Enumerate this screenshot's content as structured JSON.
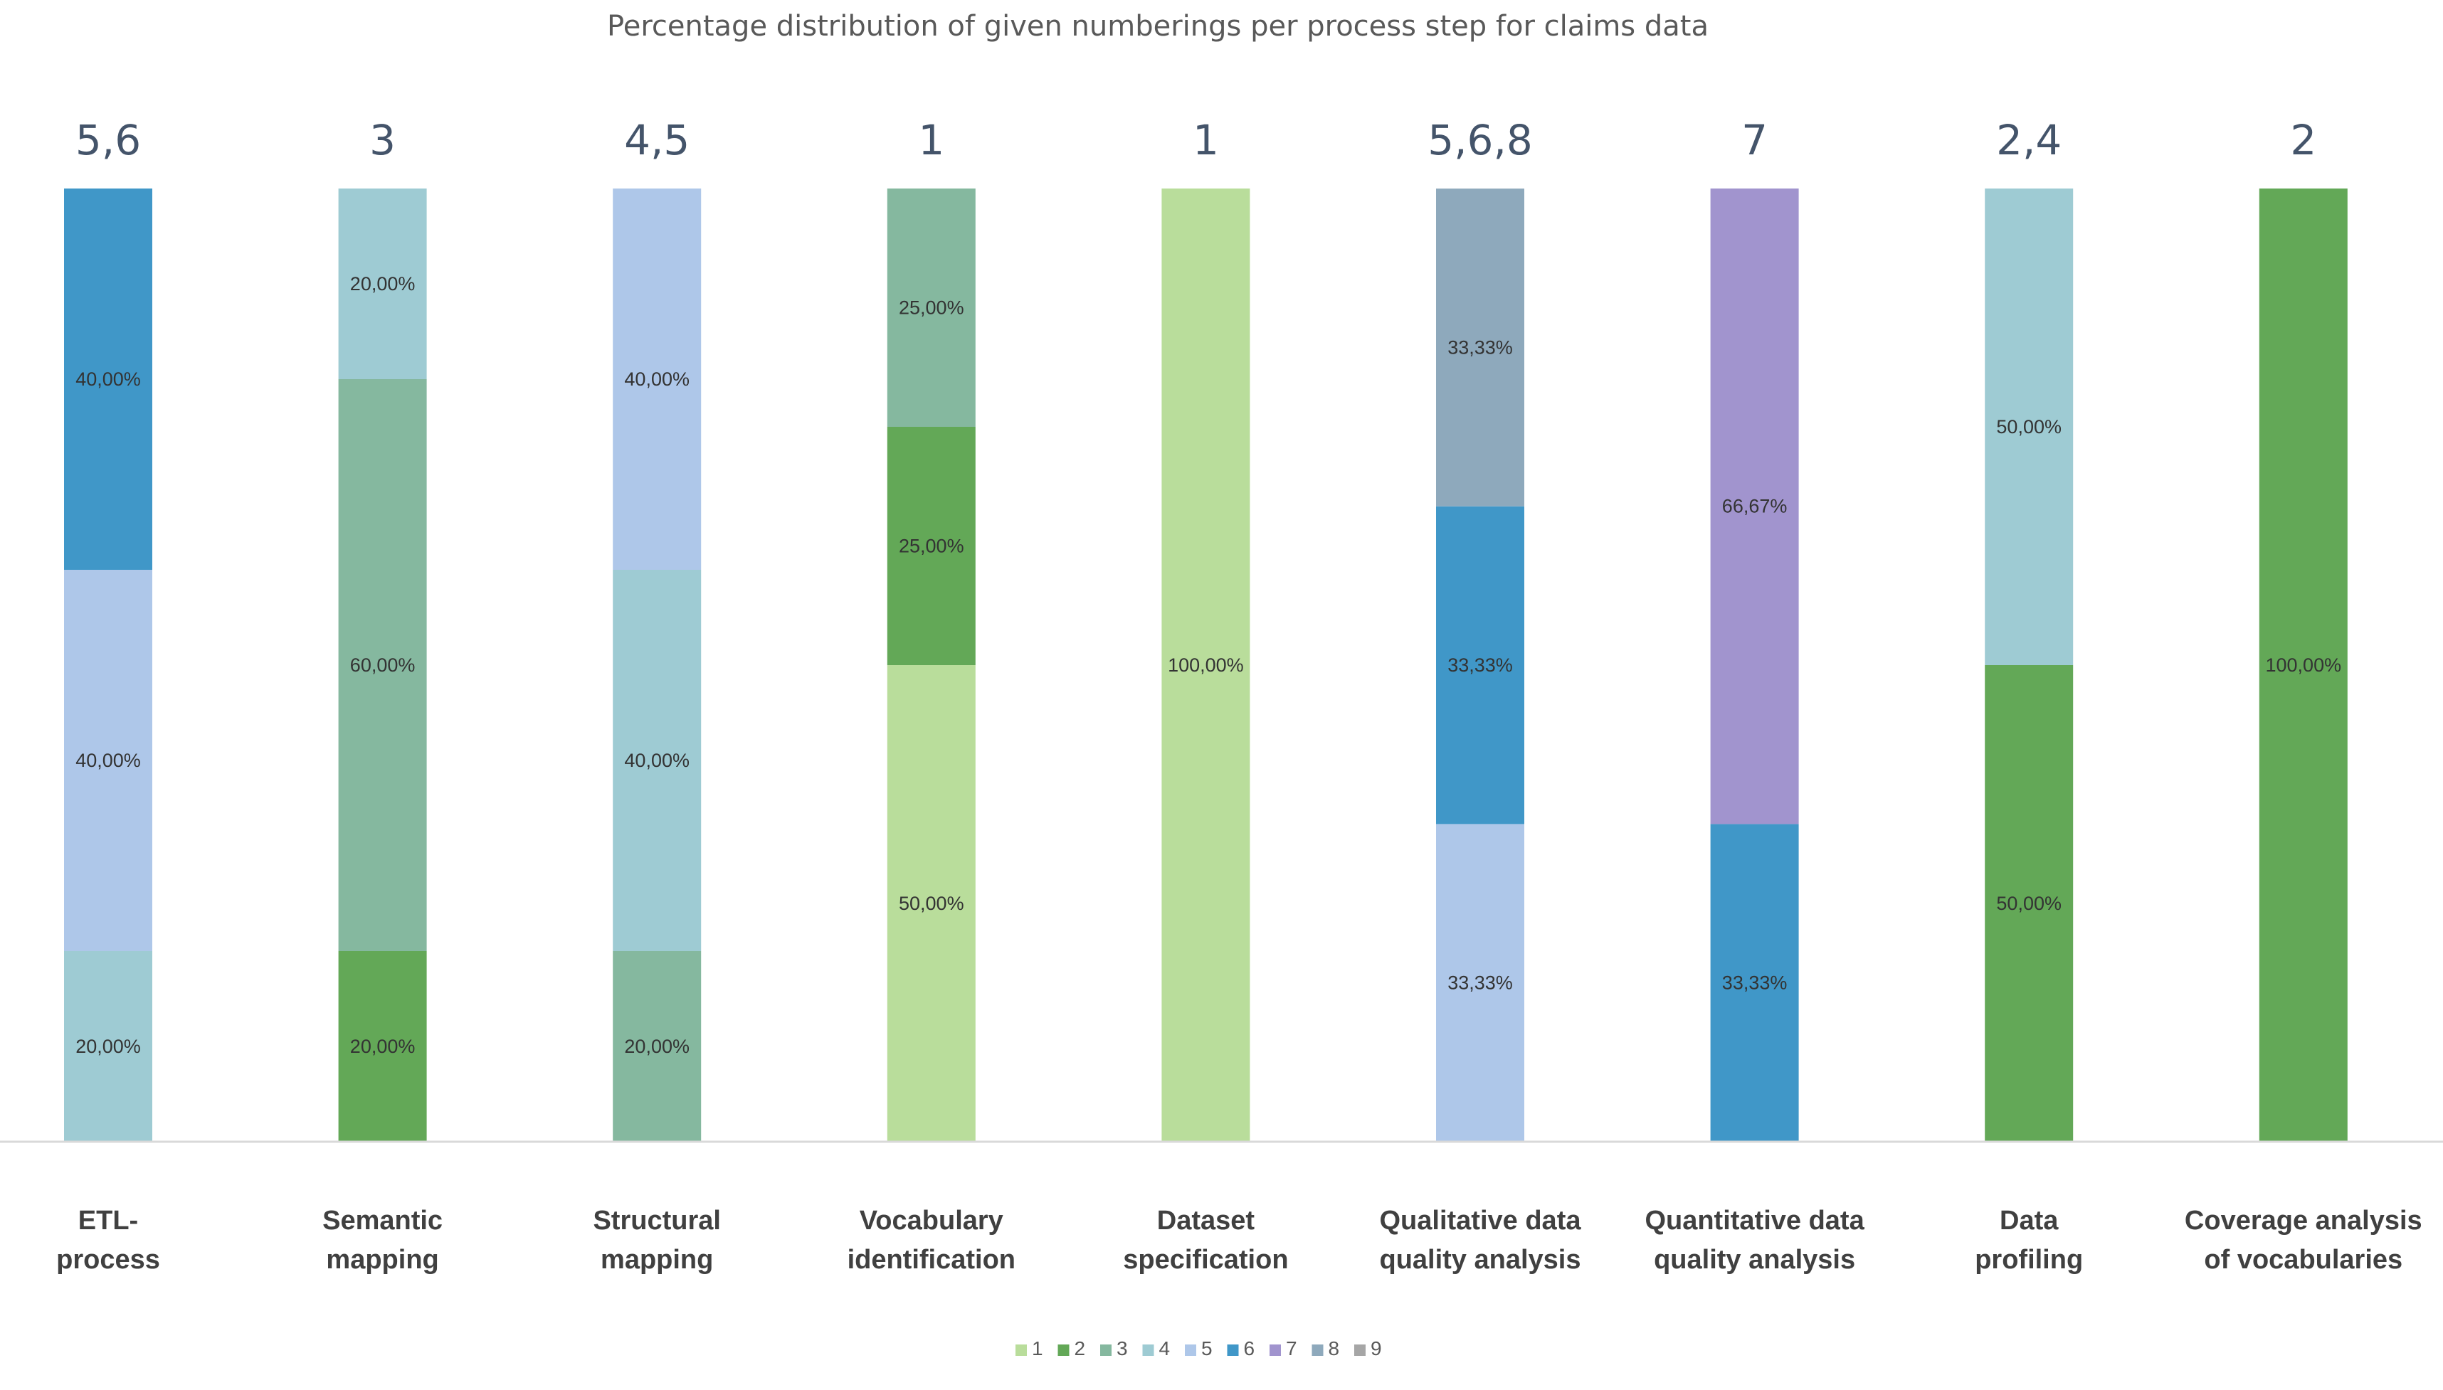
{
  "chart_data": {
    "type": "bar",
    "stacked": true,
    "title": "Percentage distribution of given numberings per process step for claims data",
    "categories": [
      [
        "ETL-",
        "process"
      ],
      [
        "Semantic",
        "mapping"
      ],
      [
        "Structural",
        "mapping"
      ],
      [
        "Vocabulary",
        "identification"
      ],
      [
        "Dataset",
        "specification"
      ],
      [
        "Qualitative data",
        "quality analysis"
      ],
      [
        "Quantitative data",
        "quality analysis"
      ],
      [
        "Data",
        "profiling"
      ],
      [
        "Coverage analysis",
        "of vocabularies"
      ]
    ],
    "top_labels": [
      "5,6",
      "3",
      "4,5",
      "1",
      "1",
      "5,6,8",
      "7",
      "2,4",
      "2"
    ],
    "ylim": [
      0,
      100
    ],
    "series": [
      {
        "name": "1",
        "color": "#b9dd9b",
        "values": [
          0,
          0,
          0,
          50,
          100,
          0,
          0,
          0,
          0
        ],
        "labels": [
          "",
          "",
          "",
          "50,00%",
          "100,00%",
          "",
          "",
          "",
          ""
        ]
      },
      {
        "name": "2",
        "color": "#63a857",
        "values": [
          0,
          20,
          0,
          25,
          0,
          0,
          0,
          50,
          100
        ],
        "labels": [
          "",
          "20,00%",
          "",
          "25,00%",
          "",
          "",
          "",
          "50,00%",
          "100,00%"
        ]
      },
      {
        "name": "3",
        "color": "#85b89f",
        "values": [
          0,
          60,
          20,
          25,
          0,
          0,
          0,
          0,
          0
        ],
        "labels": [
          "",
          "60,00%",
          "20,00%",
          "25,00%",
          "",
          "",
          "",
          "",
          ""
        ]
      },
      {
        "name": "4",
        "color": "#9ecbd3",
        "values": [
          20,
          20,
          40,
          0,
          0,
          0,
          0,
          50,
          0
        ],
        "labels": [
          "20,00%",
          "20,00%",
          "40,00%",
          "",
          "",
          "",
          "",
          "50,00%",
          ""
        ]
      },
      {
        "name": "5",
        "color": "#aec7e9",
        "values": [
          40,
          0,
          40,
          0,
          0,
          33.33,
          0,
          0,
          0
        ],
        "labels": [
          "40,00%",
          "",
          "40,00%",
          "",
          "",
          "33,33%",
          "",
          "",
          ""
        ]
      },
      {
        "name": "6",
        "color": "#4097c8",
        "values": [
          40,
          0,
          0,
          0,
          0,
          33.33,
          33.33,
          0,
          0
        ],
        "labels": [
          "40,00%",
          "",
          "",
          "",
          "",
          "33,33%",
          "33,33%",
          "",
          ""
        ]
      },
      {
        "name": "7",
        "color": "#a194ce",
        "values": [
          0,
          0,
          0,
          0,
          0,
          0,
          66.67,
          0,
          0
        ],
        "labels": [
          "",
          "",
          "",
          "",
          "",
          "",
          "66,67%",
          "",
          ""
        ]
      },
      {
        "name": "8",
        "color": "#8ea9bc",
        "values": [
          0,
          0,
          0,
          0,
          0,
          33.33,
          0,
          0,
          0
        ],
        "labels": [
          "",
          "",
          "",
          "",
          "",
          "33,33%",
          "",
          "",
          ""
        ]
      },
      {
        "name": "9",
        "color": "#a6a6a6",
        "values": [
          0,
          0,
          0,
          0,
          0,
          0,
          0,
          0,
          0
        ],
        "labels": [
          "",
          "",
          "",
          "",
          "",
          "",
          "",
          "",
          ""
        ]
      }
    ],
    "legend_position": "bottom",
    "grid": false,
    "xlabel": "",
    "ylabel": ""
  }
}
